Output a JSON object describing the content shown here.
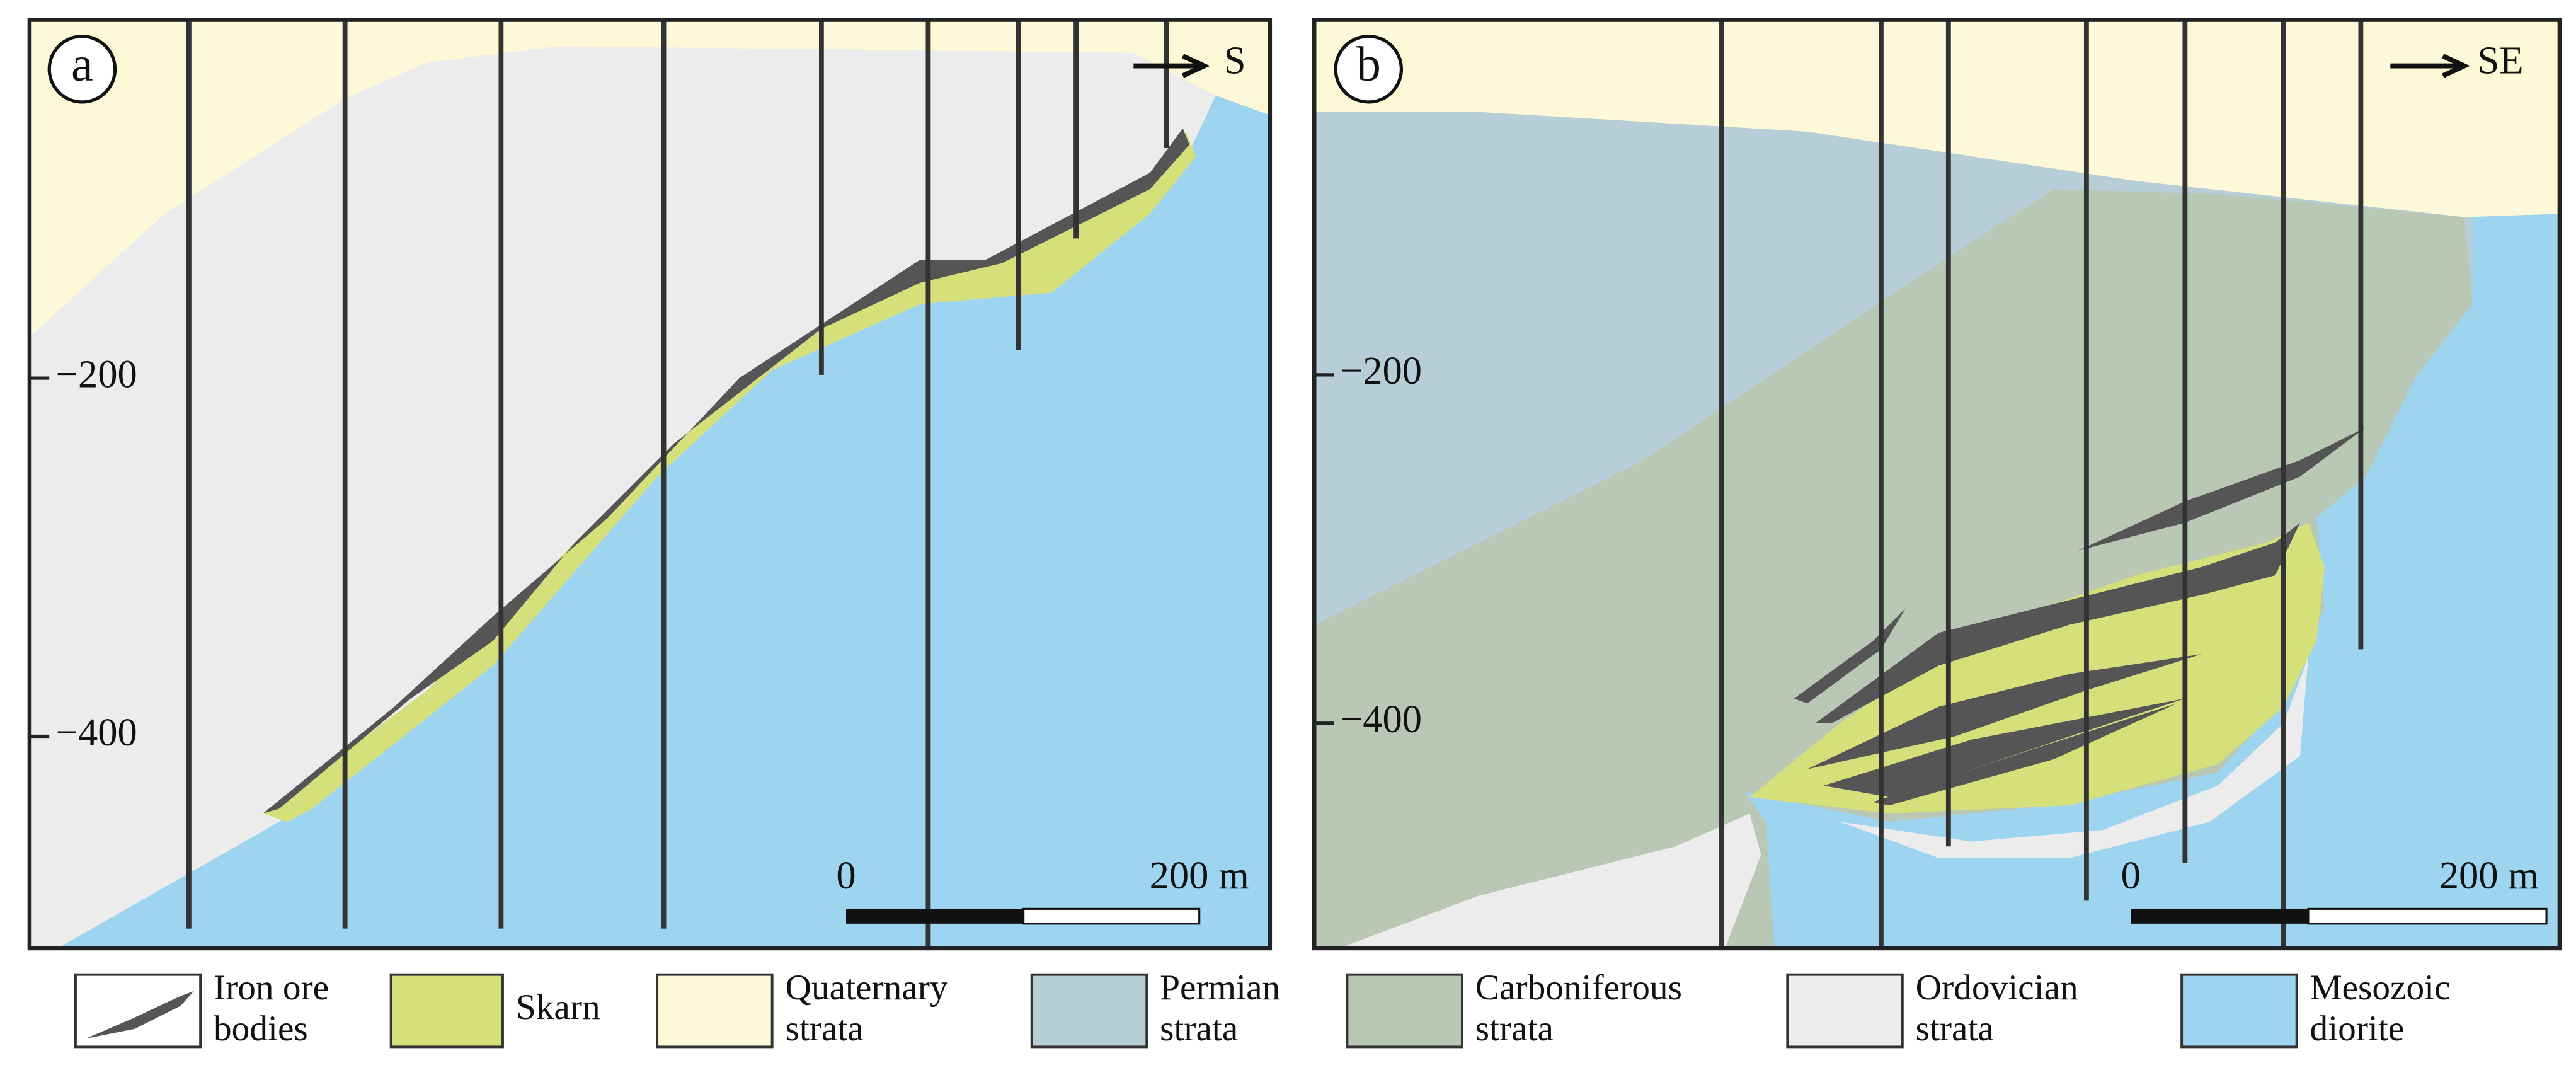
{
  "panels": [
    {
      "label": "a",
      "direction": "S",
      "depth_labels": [
        "−200",
        "−400"
      ],
      "scale_labels": [
        "0",
        "200 m"
      ]
    },
    {
      "label": "b",
      "direction": "SE",
      "depth_labels": [
        "−200",
        "−400"
      ],
      "scale_labels": [
        "0",
        "200 m"
      ]
    }
  ],
  "legend": [
    {
      "lines": [
        "Iron ore",
        "bodies"
      ]
    },
    {
      "lines": [
        "Skarn"
      ]
    },
    {
      "lines": [
        "Quaternary",
        "strata"
      ]
    },
    {
      "lines": [
        "Permian",
        "strata"
      ]
    },
    {
      "lines": [
        "Carboniferous",
        "strata"
      ]
    },
    {
      "lines": [
        "Ordovician",
        "strata"
      ]
    },
    {
      "lines": [
        "Mesozoic",
        "diorite"
      ]
    }
  ]
}
